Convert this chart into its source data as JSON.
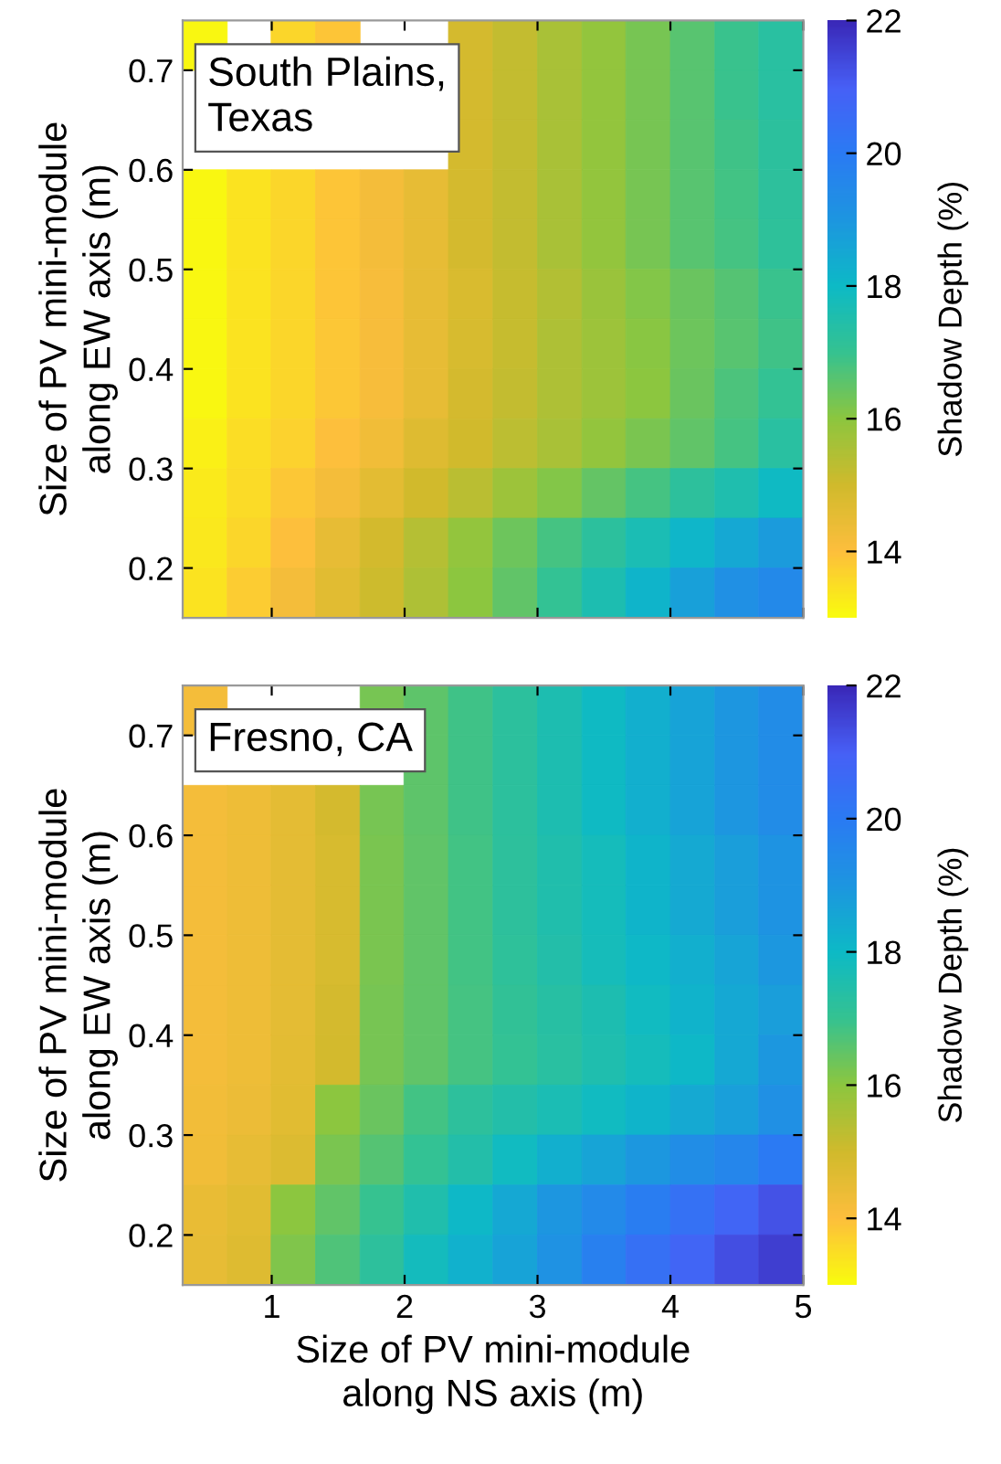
{
  "chart_data": [
    {
      "type": "heatmap",
      "annotations": [
        "South Plains,\nTexas"
      ],
      "ylabel": "Size of PV mini-module\nalong EW axis (m)",
      "clabel": "Shadow Depth (%)",
      "tick_labels": "y",
      "x": [
        0.5,
        0.83,
        1.16,
        1.5,
        1.83,
        2.16,
        2.5,
        2.83,
        3.17,
        3.5,
        3.83,
        4.17,
        4.5,
        4.83
      ],
      "y": [
        0.725,
        0.675,
        0.625,
        0.575,
        0.525,
        0.475,
        0.425,
        0.375,
        0.325,
        0.275,
        0.225,
        0.175
      ],
      "cells": [
        [
          13.1,
          null,
          13.6,
          13.9,
          null,
          null,
          14.9,
          15.2,
          15.6,
          15.9,
          16.25,
          16.6,
          16.95,
          17.3
        ],
        [
          null,
          null,
          null,
          null,
          null,
          null,
          14.9,
          15.2,
          15.6,
          15.9,
          16.25,
          16.6,
          16.95,
          17.3
        ],
        [
          null,
          null,
          null,
          null,
          null,
          null,
          14.9,
          15.2,
          15.6,
          15.9,
          16.25,
          16.6,
          16.9,
          17.25
        ],
        [
          13.1,
          13.4,
          13.6,
          13.9,
          14.2,
          14.5,
          14.9,
          15.2,
          15.6,
          15.9,
          16.25,
          16.6,
          16.85,
          17.2
        ],
        [
          13.1,
          13.4,
          13.6,
          13.9,
          14.2,
          14.5,
          14.9,
          15.2,
          15.6,
          15.9,
          16.25,
          16.6,
          16.8,
          17.15
        ],
        [
          13.1,
          13.4,
          13.6,
          13.9,
          14.15,
          14.5,
          14.8,
          15.15,
          15.45,
          15.8,
          16.1,
          16.4,
          16.65,
          16.95
        ],
        [
          13.1,
          13.4,
          13.6,
          13.85,
          14.15,
          14.5,
          14.85,
          15.15,
          15.5,
          15.75,
          16.05,
          16.35,
          16.6,
          16.9
        ],
        [
          13.1,
          13.4,
          13.6,
          13.85,
          14.15,
          14.5,
          14.9,
          15.2,
          15.5,
          15.75,
          16.0,
          16.4,
          16.75,
          17.05
        ],
        [
          13.2,
          13.5,
          13.7,
          14.0,
          14.3,
          14.7,
          15.0,
          15.3,
          15.6,
          15.9,
          16.2,
          16.5,
          16.8,
          17.3
        ],
        [
          13.3,
          13.55,
          13.85,
          14.2,
          14.6,
          15.0,
          15.35,
          15.75,
          16.1,
          16.45,
          16.8,
          17.2,
          17.55,
          17.95
        ],
        [
          13.35,
          13.6,
          14.0,
          14.5,
          14.95,
          15.4,
          15.9,
          16.35,
          16.8,
          17.25,
          17.65,
          18.1,
          18.5,
          18.85
        ],
        [
          13.4,
          13.8,
          14.2,
          14.65,
          15.05,
          15.5,
          16.0,
          16.5,
          17.05,
          17.6,
          18.15,
          18.7,
          19.2,
          19.5
        ]
      ],
      "colors": [
        "#f9fb0e",
        "#fdbe3d",
        "#d0ba2c",
        "#8cc63f",
        "#35c291",
        "#0dbac6",
        "#1d96e0",
        "#2a7bf3",
        "#4760f6",
        "#3a28b8"
      ],
      "clim": [
        13,
        22
      ],
      "cticks": [
        14,
        16,
        18,
        20,
        22
      ],
      "xlim": [
        0.33,
        5
      ],
      "ylim": [
        0.15,
        0.75
      ],
      "xticks": [
        1,
        2,
        3,
        4,
        5
      ],
      "yticks": [
        0.2,
        0.3,
        0.4,
        0.5,
        0.6,
        0.7
      ]
    },
    {
      "type": "heatmap",
      "annotations": [
        "Fresno, CA"
      ],
      "xlabel": "Size of PV mini-module\nalong NS axis (m)",
      "ylabel": "Size of PV mini-module\nalong EW axis (m)",
      "clabel": "Shadow Depth (%)",
      "x": [
        0.5,
        0.83,
        1.16,
        1.5,
        1.83,
        2.16,
        2.5,
        2.83,
        3.17,
        3.5,
        3.83,
        4.17,
        4.5,
        4.83
      ],
      "y": [
        0.725,
        0.675,
        0.625,
        0.575,
        0.525,
        0.475,
        0.425,
        0.375,
        0.325,
        0.275,
        0.225,
        0.175
      ],
      "cells": [
        [
          14.2,
          null,
          null,
          null,
          16.25,
          16.55,
          16.9,
          17.25,
          17.6,
          17.95,
          18.3,
          18.65,
          19.0,
          19.35
        ],
        [
          null,
          null,
          null,
          null,
          null,
          16.55,
          16.9,
          17.25,
          17.6,
          17.95,
          18.3,
          18.65,
          19.0,
          19.35
        ],
        [
          14.2,
          14.35,
          14.55,
          14.9,
          16.25,
          16.55,
          16.9,
          17.25,
          17.6,
          17.95,
          18.3,
          18.65,
          19.0,
          19.35
        ],
        [
          14.2,
          14.35,
          14.55,
          14.85,
          16.2,
          16.5,
          16.85,
          17.2,
          17.5,
          17.8,
          18.15,
          18.45,
          18.8,
          19.1
        ],
        [
          14.2,
          14.35,
          14.55,
          14.85,
          16.2,
          16.5,
          16.85,
          17.2,
          17.5,
          17.8,
          18.15,
          18.45,
          18.8,
          19.1
        ],
        [
          14.2,
          14.35,
          14.55,
          14.85,
          16.2,
          16.5,
          16.85,
          17.15,
          17.45,
          17.75,
          18.05,
          18.3,
          18.6,
          18.95
        ],
        [
          14.2,
          14.35,
          14.55,
          14.9,
          16.25,
          16.5,
          16.8,
          17.1,
          17.35,
          17.6,
          17.9,
          18.2,
          18.5,
          18.8
        ],
        [
          14.2,
          14.35,
          14.6,
          14.95,
          16.25,
          16.5,
          16.8,
          17.05,
          17.3,
          17.55,
          17.8,
          18.05,
          18.5,
          18.95
        ],
        [
          14.25,
          14.4,
          14.65,
          16.0,
          16.4,
          16.85,
          17.2,
          17.45,
          17.65,
          17.9,
          18.15,
          18.45,
          18.75,
          19.2
        ],
        [
          14.3,
          14.5,
          14.75,
          16.2,
          16.65,
          17.05,
          17.45,
          17.9,
          18.3,
          18.6,
          18.95,
          19.3,
          19.6,
          20.0
        ],
        [
          14.45,
          14.65,
          16.0,
          16.5,
          17.0,
          17.5,
          18.05,
          18.5,
          19.0,
          19.45,
          19.9,
          20.35,
          20.8,
          21.25
        ],
        [
          14.5,
          14.7,
          16.15,
          16.7,
          17.2,
          17.85,
          18.25,
          18.65,
          19.15,
          19.8,
          20.4,
          20.8,
          21.3,
          21.6
        ]
      ],
      "colors": [
        "#f9fb0e",
        "#fdbe3d",
        "#d0ba2c",
        "#8cc63f",
        "#35c291",
        "#0dbac6",
        "#1d96e0",
        "#2a7bf3",
        "#4760f6",
        "#3a28b8"
      ],
      "clim": [
        13,
        22
      ],
      "cticks": [
        14,
        16,
        18,
        20,
        22
      ],
      "xlim": [
        0.33,
        5
      ],
      "ylim": [
        0.15,
        0.75
      ],
      "xticks": [
        1,
        2,
        3,
        4,
        5
      ],
      "yticks": [
        0.2,
        0.3,
        0.4,
        0.5,
        0.6,
        0.7
      ]
    }
  ]
}
